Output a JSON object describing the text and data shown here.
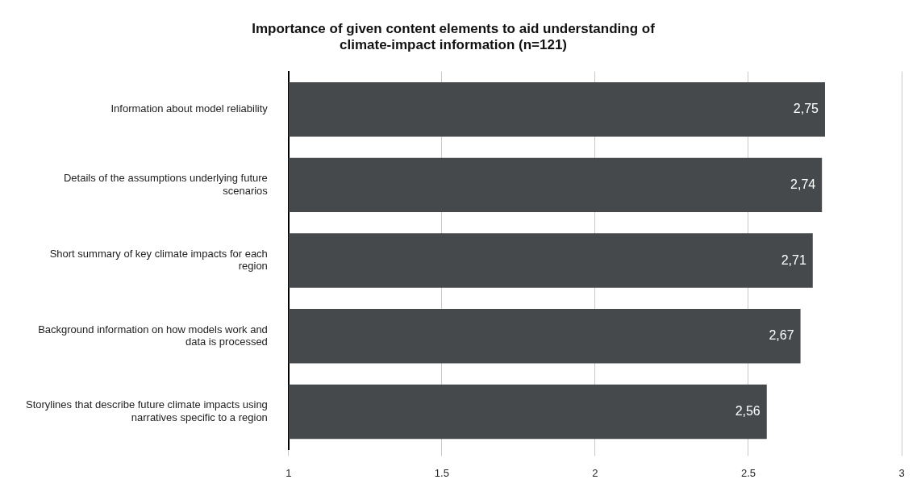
{
  "chart_data": {
    "type": "bar",
    "orientation": "horizontal",
    "title": "Importance of given content elements to aid understanding of climate-impact information (n=121)",
    "categories": [
      "Information about model reliability",
      "Details of the assumptions underlying future scenarios",
      "Short summary of key climate impacts for each region",
      "Background information on how models work and data is processed",
      "Storylines that describe future climate impacts using narratives specific to a region"
    ],
    "values": [
      2.75,
      2.74,
      2.71,
      2.67,
      2.56
    ],
    "value_labels": [
      "2,75",
      "2,74",
      "2,71",
      "2,67",
      "2,56"
    ],
    "color": "#46494c",
    "xlim": [
      1,
      3
    ],
    "xticks": [
      1,
      1.5,
      2,
      2.5,
      3
    ],
    "grid": "x",
    "legend": false
  }
}
